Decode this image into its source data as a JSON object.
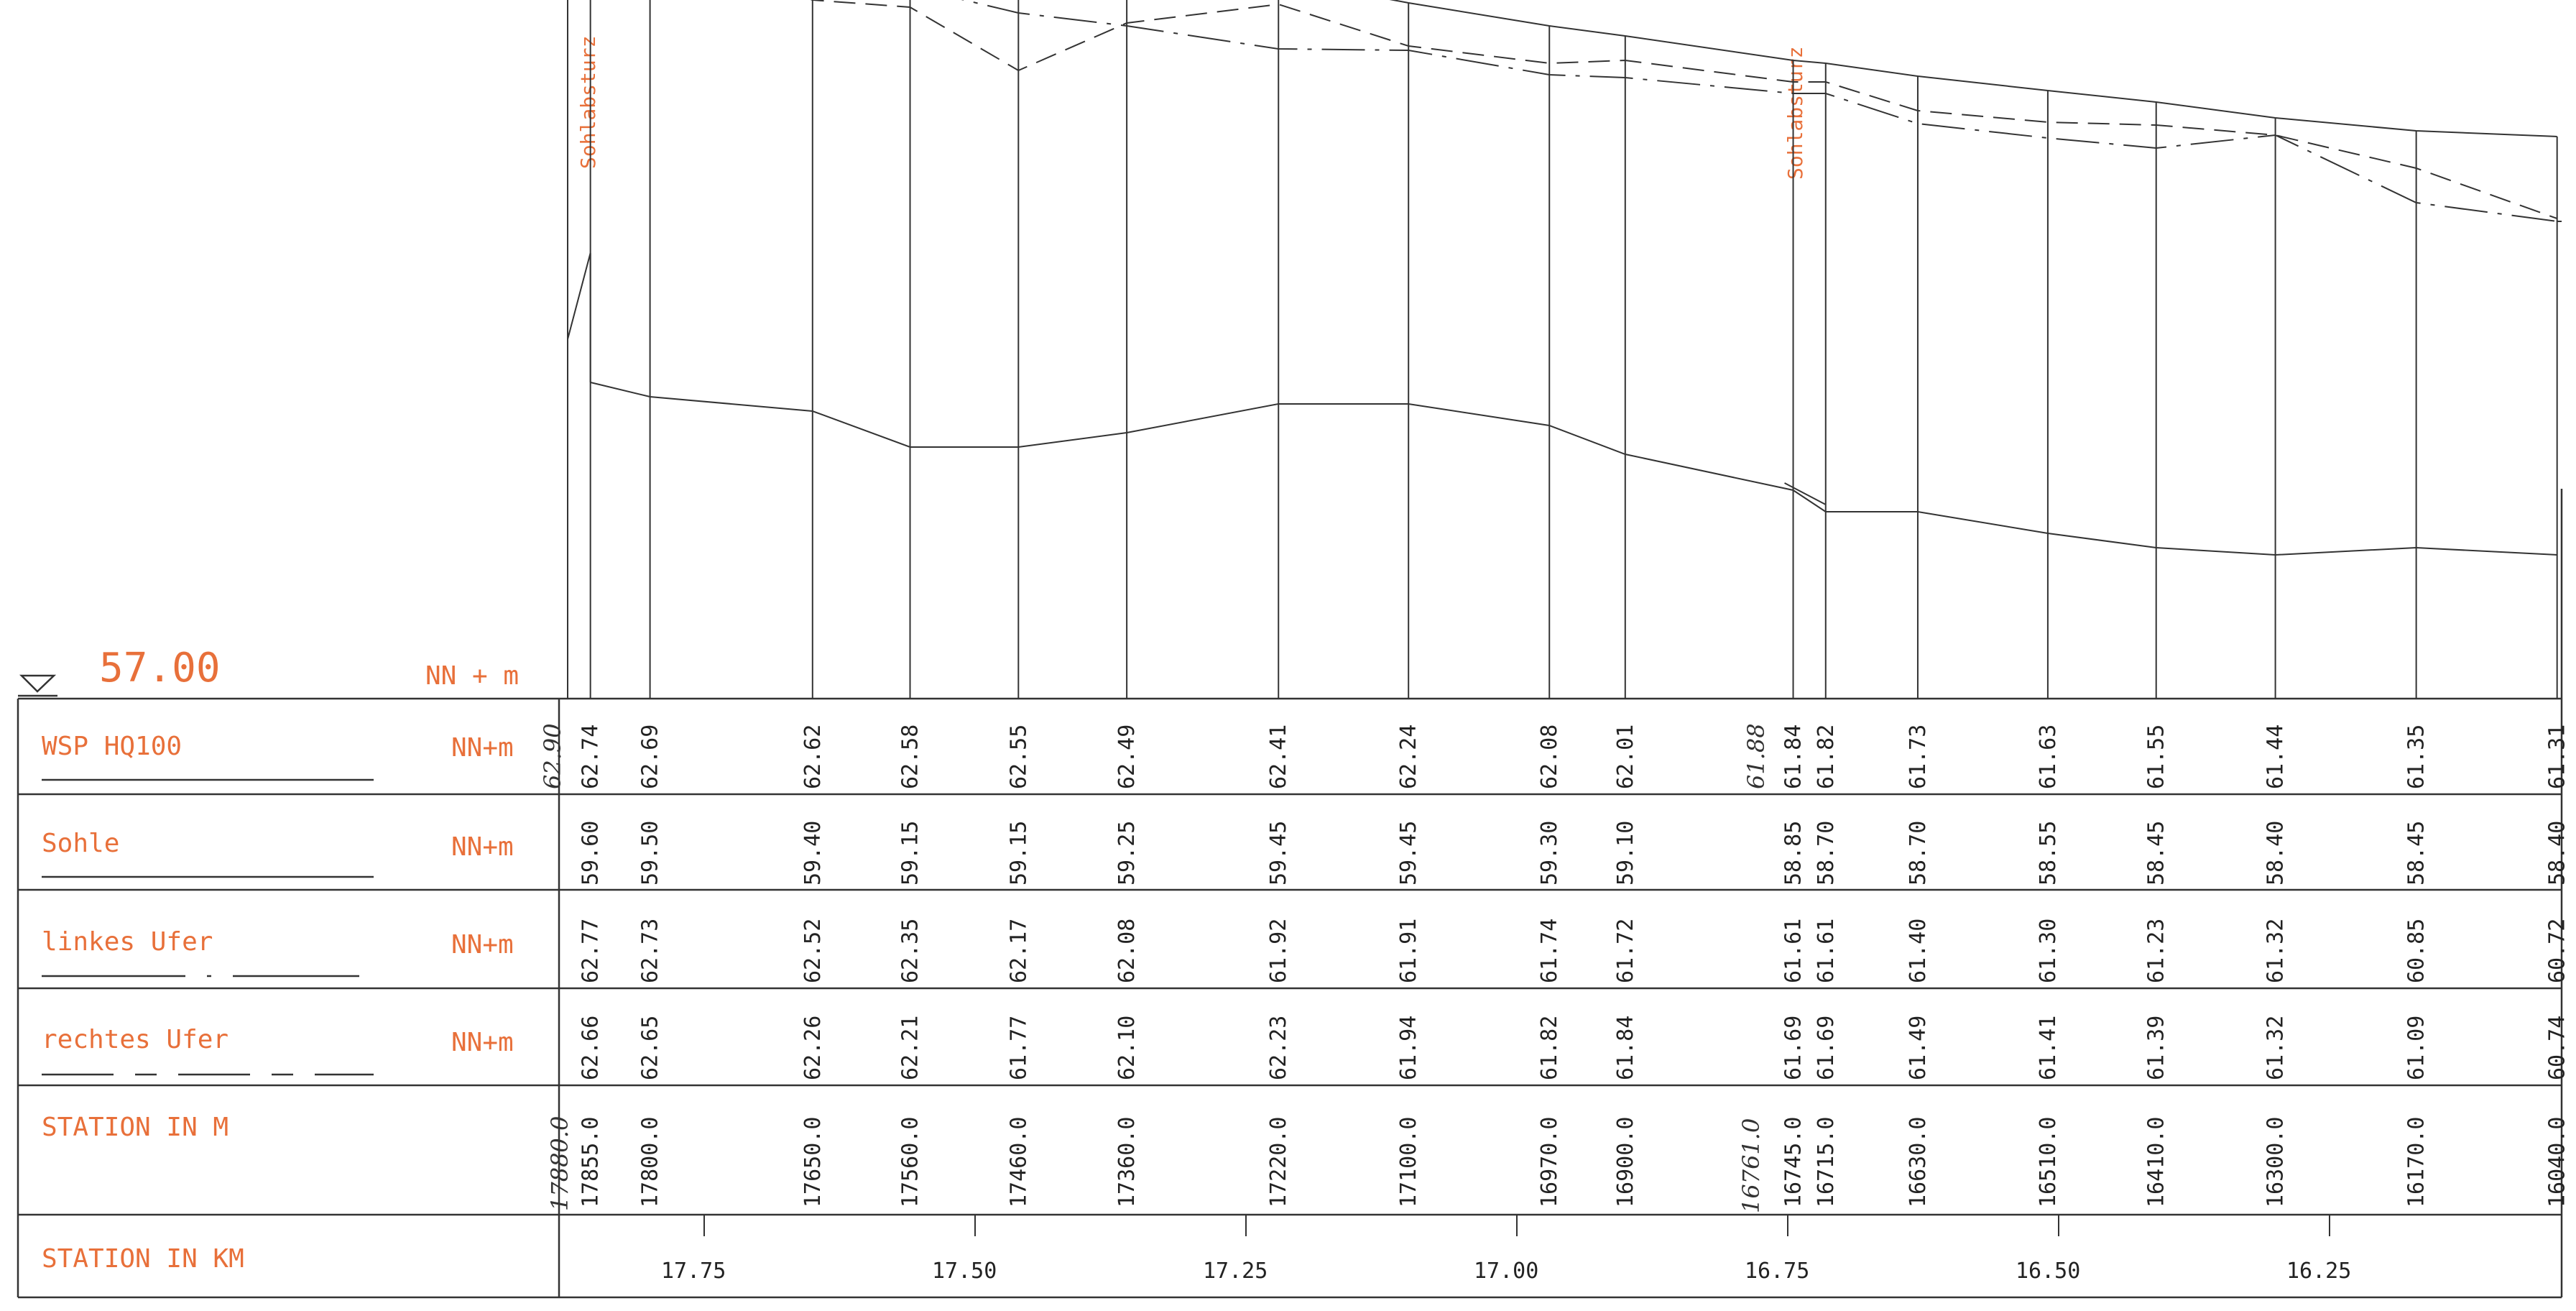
{
  "top_labels": [
    "Sohlabsturz",
    "Sohlabsturz"
  ],
  "datum": {
    "value": "57.00",
    "unit": "NN + m"
  },
  "rows": [
    {
      "label": "WSP HQ100",
      "unit": "NN+m",
      "legend": "solid"
    },
    {
      "label": "Sohle",
      "unit": "NN+m",
      "legend": "solid"
    },
    {
      "label": "linkes Ufer",
      "unit": "NN+m",
      "legend": "dash-dot"
    },
    {
      "label": "rechtes Ufer",
      "unit": "NN+m",
      "legend": "dashed"
    },
    {
      "label": "STATION IN M",
      "unit": "",
      "legend": "none"
    },
    {
      "label": "STATION IN KM",
      "unit": "",
      "legend": "none"
    }
  ],
  "handwritten": [
    "62.90",
    "61.88",
    "17880.0",
    "16761.0"
  ],
  "chart_data": {
    "type": "table",
    "x_label": "STATION IN M",
    "x": [
      "17855.0",
      "17800.0",
      "17650.0",
      "17560.0",
      "17460.0",
      "17360.0",
      "17220.0",
      "17100.0",
      "16970.0",
      "16900.0",
      "16745.0",
      "16715.0",
      "16630.0",
      "16510.0",
      "16410.0",
      "16300.0",
      "16170.0",
      "16040.0"
    ],
    "series": [
      {
        "name": "WSP HQ100",
        "values": [
          "62.74",
          "62.69",
          "62.62",
          "62.58",
          "62.55",
          "62.49",
          "62.41",
          "62.24",
          "62.08",
          "62.01",
          "61.84",
          "61.82",
          "61.73",
          "61.63",
          "61.55",
          "61.44",
          "61.35",
          "61.31"
        ]
      },
      {
        "name": "Sohle",
        "values": [
          "59.60",
          "59.50",
          "59.40",
          "59.15",
          "59.15",
          "59.25",
          "59.45",
          "59.45",
          "59.30",
          "59.10",
          "58.85",
          "58.70",
          "58.70",
          "58.55",
          "58.45",
          "58.40",
          "58.45",
          "58.40"
        ]
      },
      {
        "name": "linkes Ufer",
        "values": [
          "62.77",
          "62.73",
          "62.52",
          "62.35",
          "62.17",
          "62.08",
          "61.92",
          "61.91",
          "61.74",
          "61.72",
          "61.61",
          "61.61",
          "61.40",
          "61.30",
          "61.23",
          "61.32",
          "60.85",
          "60.72"
        ]
      },
      {
        "name": "rechtes Ufer",
        "values": [
          "62.66",
          "62.65",
          "62.26",
          "62.21",
          "61.77",
          "62.10",
          "62.23",
          "61.94",
          "61.82",
          "61.84",
          "61.69",
          "61.69",
          "61.49",
          "61.41",
          "61.39",
          "61.32",
          "61.09",
          "60.74"
        ]
      }
    ],
    "km_ticks": [
      "17.75",
      "17.50",
      "17.25",
      "17.00",
      "16.75",
      "16.50",
      "16.25"
    ],
    "datum": 57.0
  }
}
